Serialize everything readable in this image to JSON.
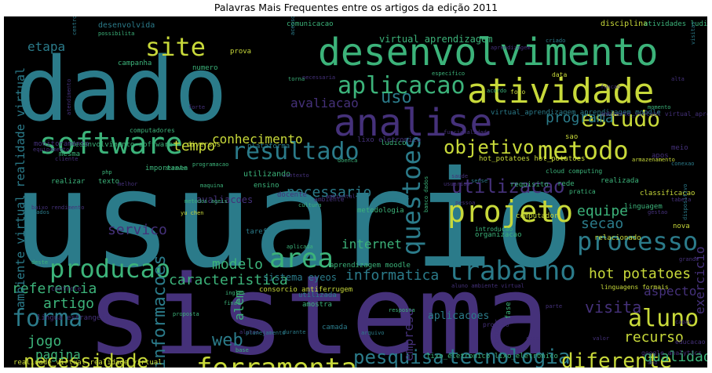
{
  "chart_data": {
    "type": "wordcloud",
    "title": "Palavras Mais Frequentes entre os artigos da edição 2011",
    "background": "#000000",
    "palette": [
      "#2b7b8a",
      "#45317a",
      "#3cb37a",
      "#c8d93a",
      "#23a884",
      "#6d2f85",
      "#2f9e8f",
      "#5ec962"
    ],
    "words": [
      {
        "text": "usuario"
      },
      {
        "text": "sistema"
      },
      {
        "text": "dado"
      },
      {
        "text": "desenvolvimento"
      },
      {
        "text": "atividade"
      },
      {
        "text": "analise"
      },
      {
        "text": "software"
      },
      {
        "text": "aplicacao"
      },
      {
        "text": "site"
      },
      {
        "text": "metodo"
      },
      {
        "text": "resultado"
      },
      {
        "text": "estudo"
      },
      {
        "text": "projeto"
      },
      {
        "text": "trabalho"
      },
      {
        "text": "processo"
      },
      {
        "text": "questoes"
      },
      {
        "text": "area"
      },
      {
        "text": "producao"
      },
      {
        "text": "forma"
      },
      {
        "text": "aluno"
      },
      {
        "text": "ferramenta"
      },
      {
        "text": "tecnologia"
      },
      {
        "text": "pesquisa"
      },
      {
        "text": "diferente"
      },
      {
        "text": "necessidade"
      },
      {
        "text": "informacoes"
      },
      {
        "text": "objetivo"
      },
      {
        "text": "utilizacao"
      },
      {
        "text": "uso"
      },
      {
        "text": "programa"
      },
      {
        "text": "conhecimento"
      },
      {
        "text": "caracteristica"
      },
      {
        "text": "informatica"
      },
      {
        "text": "web"
      },
      {
        "text": "visita"
      },
      {
        "text": "recurso"
      },
      {
        "text": "qualidade"
      },
      {
        "text": "tempo"
      },
      {
        "text": "servico"
      },
      {
        "text": "necessario"
      },
      {
        "text": "avaliacao"
      },
      {
        "text": "secao"
      },
      {
        "text": "equipe"
      },
      {
        "text": "internet"
      },
      {
        "text": "modelo"
      },
      {
        "text": "referencia"
      },
      {
        "text": "artigo"
      },
      {
        "text": "jogo"
      },
      {
        "text": "pagina"
      },
      {
        "text": "aspecto"
      },
      {
        "text": "hot potatoes"
      },
      {
        "text": "exercicio"
      },
      {
        "text": "empresa"
      },
      {
        "text": "etapa"
      },
      {
        "text": "alem"
      },
      {
        "text": "ambiente virtual realidade virtual"
      },
      {
        "text": "aplicacoes"
      },
      {
        "text": "sistema eyeos"
      },
      {
        "text": "avaliacoes"
      },
      {
        "text": "virtual aprendizagem"
      },
      {
        "text": "desenvolvida"
      },
      {
        "text": "comunicacao"
      },
      {
        "text": "disciplina"
      },
      {
        "text": "atividades ludicas"
      },
      {
        "text": "hot_potatoes hot_potatoes"
      },
      {
        "text": "virtual_aprendizagem aprendizagem_moodle"
      },
      {
        "text": "ambiente_virtual virtual_aprendizagem"
      },
      {
        "text": "realidade_virtual realidade_virtual"
      },
      {
        "text": "lixo_eletronico lixo_eletronico"
      },
      {
        "text": "desenvolvimento software"
      },
      {
        "text": "monitoramento"
      },
      {
        "text": "consorcio antiferrugem"
      },
      {
        "text": "lingua estrangeira"
      },
      {
        "text": "aprendizagem moodle"
      },
      {
        "text": "classificacao"
      },
      {
        "text": "linguagem"
      },
      {
        "text": "computador"
      },
      {
        "text": "relacionado"
      },
      {
        "text": "organizacao"
      },
      {
        "text": "requisito"
      },
      {
        "text": "metodologia"
      },
      {
        "text": "maneira"
      },
      {
        "text": "camada"
      },
      {
        "text": "amostra"
      },
      {
        "text": "utilizada"
      },
      {
        "text": "utilizando"
      },
      {
        "text": "importante"
      },
      {
        "text": "plataforma"
      },
      {
        "text": "diversos"
      },
      {
        "text": "campanha"
      },
      {
        "text": "numero"
      },
      {
        "text": "realizar"
      },
      {
        "text": "texto"
      },
      {
        "text": "mesma"
      },
      {
        "text": "controle"
      },
      {
        "text": "ensino"
      },
      {
        "text": "docente"
      },
      {
        "text": "tarefa"
      },
      {
        "text": "ludico"
      },
      {
        "text": "realizada"
      },
      {
        "text": "nova"
      },
      {
        "text": "meio"
      },
      {
        "text": "apos"
      },
      {
        "text": "rede"
      },
      {
        "text": "produto"
      },
      {
        "text": "google analytics"
      },
      {
        "text": "linguagens formais"
      },
      {
        "text": "educacao"
      },
      {
        "text": "ambiente"
      },
      {
        "text": "lixo eletronico"
      },
      {
        "text": "prova"
      },
      {
        "text": "computadores"
      },
      {
        "text": "cloud computing"
      },
      {
        "text": "pratica"
      },
      {
        "text": "introducao"
      },
      {
        "text": "ingles"
      },
      {
        "text": "final"
      },
      {
        "text": "fase"
      },
      {
        "text": "data"
      },
      {
        "text": "foco"
      },
      {
        "text": "sao"
      },
      {
        "text": "momento"
      },
      {
        "text": "armazenamento"
      },
      {
        "text": "conexao"
      },
      {
        "text": "durante"
      },
      {
        "text": "proposta"
      },
      {
        "text": "resposta"
      },
      {
        "text": "arquivo"
      },
      {
        "text": "municipio"
      },
      {
        "text": "consulta"
      },
      {
        "text": "contexto"
      },
      {
        "text": "cultura"
      },
      {
        "text": "alunos"
      },
      {
        "text": "dados"
      },
      {
        "text": "equipamento"
      },
      {
        "text": "cliente"
      },
      {
        "text": "centro"
      },
      {
        "text": "atraves"
      },
      {
        "text": "melhor"
      },
      {
        "text": "possibilita"
      },
      {
        "text": "php"
      },
      {
        "text": "yu chen"
      },
      {
        "text": "criado"
      },
      {
        "text": "qualquer"
      },
      {
        "text": "funcionalidade"
      },
      {
        "text": "especifico"
      },
      {
        "text": "acordo"
      },
      {
        "text": "base"
      },
      {
        "text": "torna"
      },
      {
        "text": "banco dados"
      },
      {
        "text": "metodos ageis"
      },
      {
        "text": "maquina"
      },
      {
        "text": "aluno ambiente virtual"
      },
      {
        "text": "planejamento"
      },
      {
        "text": "usuarios"
      },
      {
        "text": "aprendizagem"
      },
      {
        "text": "necessaria"
      },
      {
        "text": "programacao"
      },
      {
        "text": "acesso"
      },
      {
        "text": "atendimento"
      },
      {
        "text": "diversas"
      },
      {
        "text": "baixo rendimento"
      },
      {
        "text": "doenca"
      },
      {
        "text": "ambiental"
      },
      {
        "text": "pessoa"
      },
      {
        "text": "alta"
      },
      {
        "text": "grande"
      },
      {
        "text": "deste"
      },
      {
        "text": "forte"
      },
      {
        "text": "saude"
      },
      {
        "text": "sense"
      },
      {
        "text": "gestao"
      },
      {
        "text": "aplicada"
      },
      {
        "text": "parte"
      },
      {
        "text": "dispositivo"
      },
      {
        "text": "cada"
      },
      {
        "text": "valor"
      },
      {
        "text": "tabela"
      },
      {
        "text": "visitas"
      },
      {
        "text": "capaz"
      },
      {
        "text": "funcao"
      },
      {
        "text": "ano"
      }
    ]
  }
}
